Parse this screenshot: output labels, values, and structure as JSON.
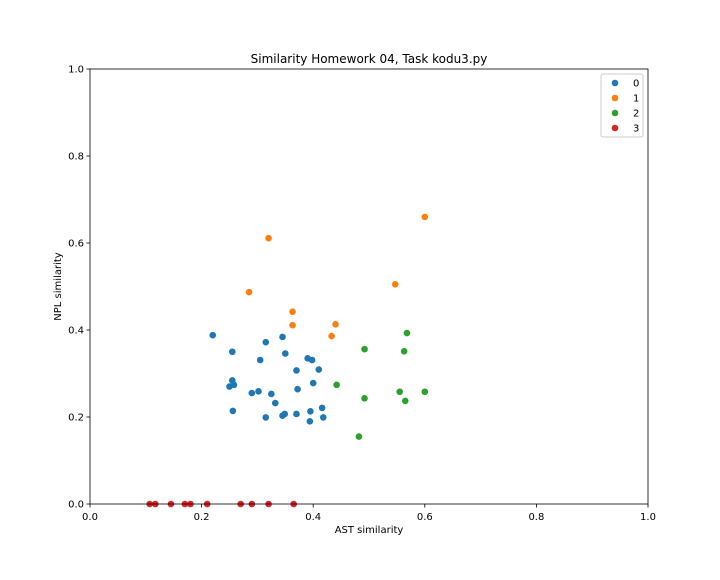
{
  "chart_data": {
    "type": "scatter",
    "title": "Similarity Homework 04, Task kodu3.py",
    "xlabel": "AST similarity",
    "ylabel": "NPL similarity",
    "xlim": [
      0,
      1
    ],
    "ylim": [
      0,
      1
    ],
    "xticks": [
      "0.0",
      "0.2",
      "0.4",
      "0.6",
      "0.8",
      "1.0"
    ],
    "yticks": [
      "0.0",
      "0.2",
      "0.4",
      "0.6",
      "0.8",
      "1.0"
    ],
    "grid": false,
    "legend_position": "top-right",
    "series": [
      {
        "name": "0",
        "color": "#1f77b4",
        "points": [
          [
            0.22,
            0.388
          ],
          [
            0.255,
            0.35
          ],
          [
            0.315,
            0.372
          ],
          [
            0.345,
            0.384
          ],
          [
            0.305,
            0.331
          ],
          [
            0.35,
            0.346
          ],
          [
            0.39,
            0.335
          ],
          [
            0.398,
            0.331
          ],
          [
            0.41,
            0.309
          ],
          [
            0.37,
            0.307
          ],
          [
            0.255,
            0.284
          ],
          [
            0.25,
            0.27
          ],
          [
            0.258,
            0.274
          ],
          [
            0.29,
            0.255
          ],
          [
            0.302,
            0.259
          ],
          [
            0.325,
            0.253
          ],
          [
            0.372,
            0.264
          ],
          [
            0.4,
            0.278
          ],
          [
            0.332,
            0.232
          ],
          [
            0.256,
            0.214
          ],
          [
            0.315,
            0.199
          ],
          [
            0.345,
            0.203
          ],
          [
            0.349,
            0.207
          ],
          [
            0.37,
            0.207
          ],
          [
            0.395,
            0.213
          ],
          [
            0.416,
            0.221
          ],
          [
            0.418,
            0.199
          ],
          [
            0.394,
            0.19
          ]
        ]
      },
      {
        "name": "1",
        "color": "#ff7f0e",
        "points": [
          [
            0.32,
            0.611
          ],
          [
            0.285,
            0.487
          ],
          [
            0.363,
            0.442
          ],
          [
            0.363,
            0.411
          ],
          [
            0.44,
            0.413
          ],
          [
            0.433,
            0.386
          ],
          [
            0.547,
            0.505
          ],
          [
            0.6,
            0.66
          ]
        ]
      },
      {
        "name": "2",
        "color": "#2ca02c",
        "points": [
          [
            0.492,
            0.356
          ],
          [
            0.568,
            0.393
          ],
          [
            0.563,
            0.351
          ],
          [
            0.442,
            0.274
          ],
          [
            0.492,
            0.243
          ],
          [
            0.555,
            0.258
          ],
          [
            0.565,
            0.237
          ],
          [
            0.6,
            0.258
          ],
          [
            0.482,
            0.155
          ]
        ]
      },
      {
        "name": "3",
        "color": "#d62728",
        "points": [
          [
            0.107,
            0.0
          ],
          [
            0.117,
            0.0
          ],
          [
            0.145,
            0.0
          ],
          [
            0.17,
            0.0
          ],
          [
            0.18,
            0.0
          ],
          [
            0.21,
            0.0
          ],
          [
            0.27,
            0.0
          ],
          [
            0.29,
            0.0
          ],
          [
            0.32,
            0.0
          ],
          [
            0.365,
            0.0
          ]
        ]
      }
    ]
  }
}
